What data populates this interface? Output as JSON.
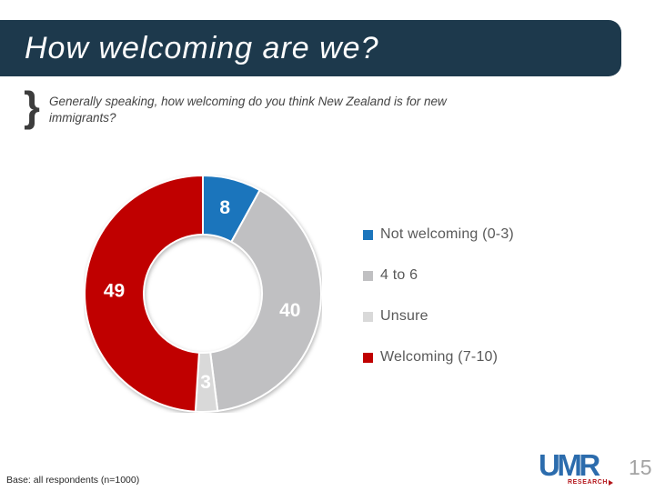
{
  "slide": {
    "title": "How welcoming are we?",
    "question_brace": "}",
    "question": "Generally speaking, how welcoming do you think New Zealand is for new immigrants?",
    "base_note": "Base: all respondents (n=1000)",
    "page_number": "15",
    "logo": {
      "text": "UMR",
      "subtext": "RESEARCH"
    }
  },
  "colors": {
    "title_bar": "#1d394c",
    "title_text": "#ffffff",
    "question_text": "#444444",
    "legend_text": "#595959",
    "page_number": "#a3a3a3",
    "logo_blue": "#2c6cad",
    "logo_red": "#b4161b"
  },
  "chart_data": {
    "type": "pie",
    "subtype": "donut",
    "title": "",
    "categories": [
      "Not welcoming (0-3)",
      "4 to 6",
      "Unsure",
      "Welcoming (7-10)"
    ],
    "values": [
      8,
      40,
      3,
      49
    ],
    "data_labels": [
      "8",
      "40",
      "3",
      "49"
    ],
    "colors": [
      "#1b75bc",
      "#c0c0c2",
      "#d9d9d9",
      "#c00000"
    ],
    "start_angle_deg": 0,
    "direction": "clockwise",
    "donut_hole_ratio": 0.5,
    "legend_position": "right",
    "data_label_color": "#ffffff"
  },
  "legend": {
    "items": [
      {
        "label": "Not welcoming (0-3)",
        "color": "#1b75bc"
      },
      {
        "label": "4 to 6",
        "color": "#c0c0c2"
      },
      {
        "label": "Unsure",
        "color": "#d9d9d9"
      },
      {
        "label": "Welcoming (7-10)",
        "color": "#c00000"
      }
    ]
  }
}
